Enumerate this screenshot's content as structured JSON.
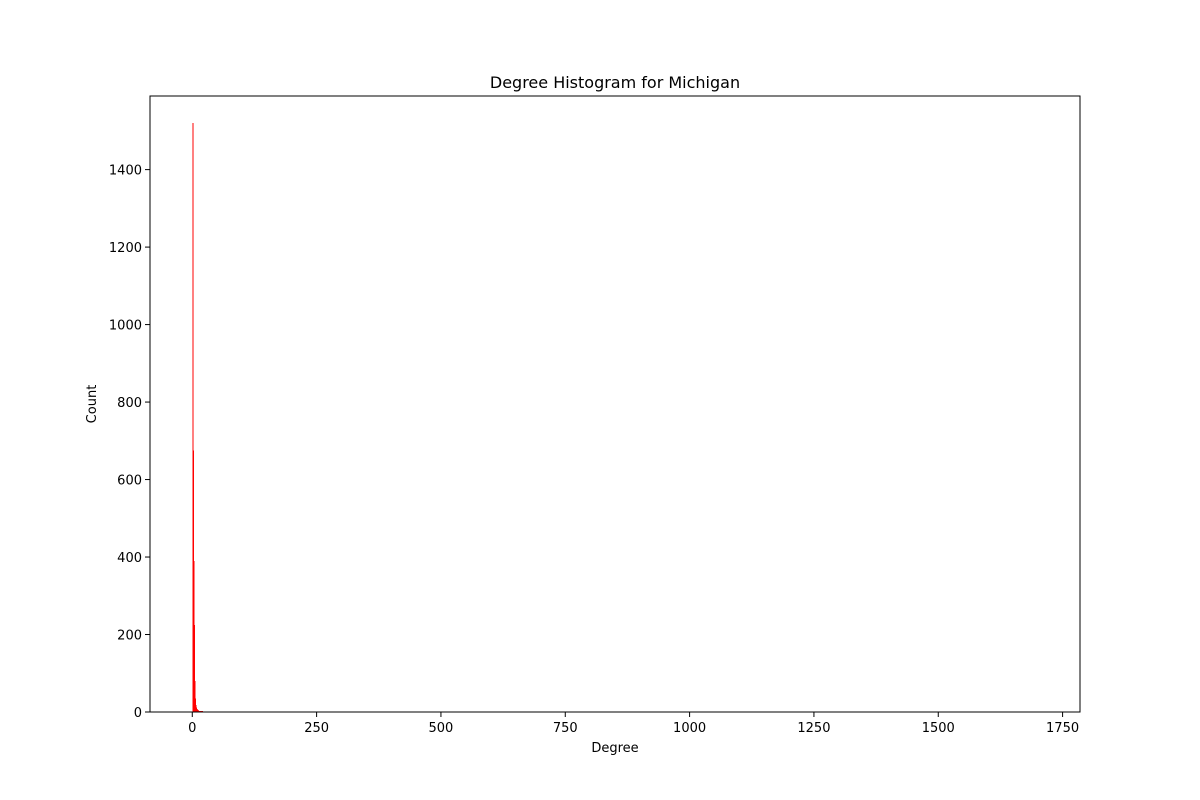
{
  "chart_data": {
    "type": "bar",
    "title": "Degree Histogram for Michigan",
    "xlabel": "Degree",
    "ylabel": "Count",
    "xlim": [
      -85,
      1785
    ],
    "ylim": [
      0,
      1590
    ],
    "xticks": [
      0,
      250,
      500,
      750,
      1000,
      1250,
      1500,
      1750
    ],
    "yticks": [
      0,
      200,
      400,
      600,
      800,
      1000,
      1200,
      1400
    ],
    "bar_color": "#ff0000",
    "grid": false,
    "bars": [
      {
        "degree": 1,
        "count": 1520
      },
      {
        "degree": 2,
        "count": 675
      },
      {
        "degree": 3,
        "count": 390
      },
      {
        "degree": 4,
        "count": 225
      },
      {
        "degree": 5,
        "count": 80
      },
      {
        "degree": 6,
        "count": 35
      },
      {
        "degree": 7,
        "count": 18
      },
      {
        "degree": 8,
        "count": 12
      },
      {
        "degree": 9,
        "count": 8
      },
      {
        "degree": 10,
        "count": 6
      },
      {
        "degree": 11,
        "count": 5
      },
      {
        "degree": 12,
        "count": 4
      },
      {
        "degree": 13,
        "count": 3
      },
      {
        "degree": 14,
        "count": 3
      },
      {
        "degree": 15,
        "count": 2
      },
      {
        "degree": 16,
        "count": 2
      },
      {
        "degree": 18,
        "count": 2
      },
      {
        "degree": 20,
        "count": 2
      },
      {
        "degree": 22,
        "count": 1
      },
      {
        "degree": 25,
        "count": 1
      },
      {
        "degree": 28,
        "count": 1
      },
      {
        "degree": 32,
        "count": 1
      },
      {
        "degree": 38,
        "count": 1
      },
      {
        "degree": 45,
        "count": 1
      },
      {
        "degree": 112,
        "count": 1
      },
      {
        "degree": 225,
        "count": 1
      },
      {
        "degree": 232,
        "count": 1
      }
    ]
  }
}
